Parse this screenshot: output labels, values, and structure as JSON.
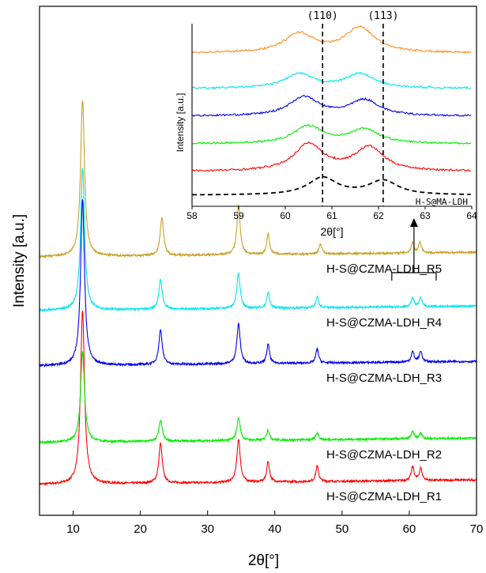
{
  "chart_data": [
    {
      "type": "line",
      "title": "",
      "xlabel": "2θ[°]",
      "ylabel": "Intensity [a.u.]",
      "xlim": [
        5,
        70
      ],
      "xticks": [
        10,
        20,
        30,
        40,
        50,
        60,
        70
      ],
      "grid": false,
      "series": [
        {
          "name": "H-S@CZMA-LDH_R1",
          "color": "#ff0000",
          "peaks": [
            [
              11.4,
              1.0
            ],
            [
              23.0,
              0.23
            ],
            [
              34.6,
              0.25
            ],
            [
              39.0,
              0.12
            ],
            [
              46.3,
              0.09
            ],
            [
              60.5,
              0.08
            ],
            [
              61.7,
              0.07
            ]
          ]
        },
        {
          "name": "H-S@CZMA-LDH_R2",
          "color": "#00ee00",
          "peaks": [
            [
              11.4,
              0.52
            ],
            [
              23.0,
              0.12
            ],
            [
              34.6,
              0.13
            ],
            [
              39.0,
              0.06
            ],
            [
              46.3,
              0.04
            ],
            [
              60.5,
              0.04
            ],
            [
              61.7,
              0.03
            ]
          ]
        },
        {
          "name": "H-S@CZMA-LDH_R3",
          "color": "#0000ee",
          "peaks": [
            [
              11.4,
              0.95
            ],
            [
              23.0,
              0.2
            ],
            [
              34.6,
              0.23
            ],
            [
              39.0,
              0.11
            ],
            [
              46.3,
              0.08
            ],
            [
              60.5,
              0.06
            ],
            [
              61.7,
              0.06
            ]
          ]
        },
        {
          "name": "H-S@CZMA-LDH_R4",
          "color": "#00e5ee",
          "peaks": [
            [
              11.4,
              0.82
            ],
            [
              23.0,
              0.17
            ],
            [
              34.6,
              0.2
            ],
            [
              39.0,
              0.09
            ],
            [
              46.3,
              0.06
            ],
            [
              60.5,
              0.05
            ],
            [
              61.7,
              0.05
            ]
          ]
        },
        {
          "name": "H-S@CZMA-LDH_R5",
          "color": "#c8a028",
          "peaks": [
            [
              11.4,
              0.9
            ],
            [
              23.2,
              0.22
            ],
            [
              34.6,
              0.28
            ],
            [
              39.0,
              0.12
            ],
            [
              46.8,
              0.06
            ],
            [
              60.5,
              0.06
            ],
            [
              61.6,
              0.06
            ]
          ]
        }
      ]
    },
    {
      "type": "line",
      "title": "",
      "xlabel": "2θ[°]",
      "ylabel": "Intensity [a.u.]",
      "xlim": [
        58,
        64
      ],
      "xticks": [
        58,
        59,
        60,
        61,
        62,
        63,
        64
      ],
      "reference_lines": [
        {
          "x": 60.8,
          "label": "(110)"
        },
        {
          "x": 62.1,
          "label": "(113)"
        }
      ],
      "series": [
        {
          "name": "H-S@MA-LDH",
          "color": "#000000",
          "dashed": true,
          "peaks": [
            [
              60.8,
              0.55
            ],
            [
              62.1,
              0.45
            ]
          ]
        },
        {
          "name": "",
          "color": "#ff0000",
          "peaks": [
            [
              60.5,
              0.85
            ],
            [
              61.8,
              0.75
            ]
          ]
        },
        {
          "name": "",
          "color": "#00ee00",
          "peaks": [
            [
              60.5,
              0.55
            ],
            [
              61.7,
              0.45
            ]
          ]
        },
        {
          "name": "",
          "color": "#0000ee",
          "peaks": [
            [
              60.4,
              0.6
            ],
            [
              61.7,
              0.5
            ]
          ]
        },
        {
          "name": "",
          "color": "#00e5ee",
          "peaks": [
            [
              60.3,
              0.45
            ],
            [
              61.6,
              0.45
            ]
          ]
        },
        {
          "name": "",
          "color": "#ff8c1a",
          "peaks": [
            [
              60.3,
              0.6
            ],
            [
              61.6,
              0.8
            ]
          ]
        }
      ]
    }
  ]
}
